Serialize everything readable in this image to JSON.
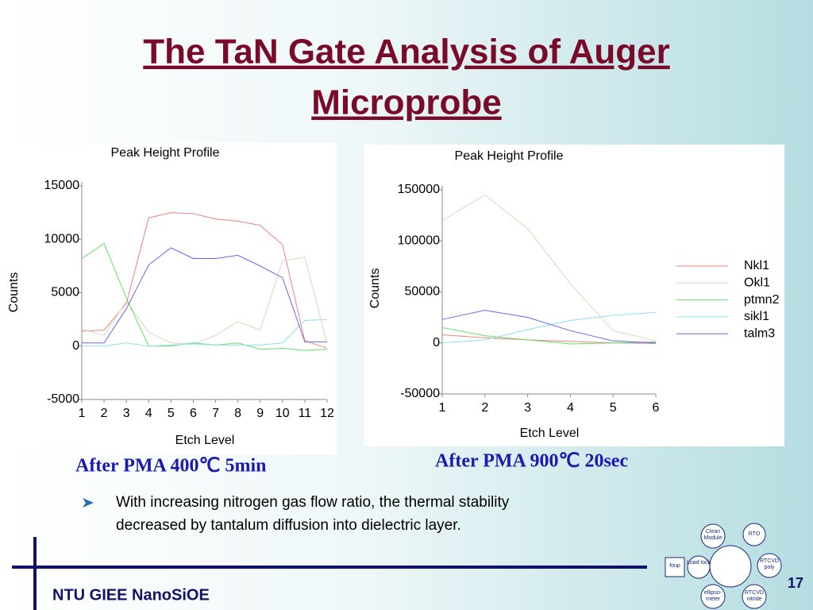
{
  "title": "The TaN Gate Analysis of Auger Microprobe",
  "captions": [
    "After PMA 400℃ 5min",
    "After PMA 900℃ 20sec"
  ],
  "bullet": [
    "With increasing nitrogen gas flow ratio, the thermal stability",
    "decreased by tantalum diffusion into dielectric layer."
  ],
  "footer": "NTU GIEE NanoSiOE",
  "page_number": "17",
  "logo": [
    "Clean Module",
    "RTO",
    "foup",
    "Load lock",
    "RTCVD poly",
    "ellipso-meter",
    "RTCVD nitride"
  ],
  "chart_data": [
    {
      "type": "line",
      "title": "Peak Height Profile",
      "x_label": "Etch Level",
      "y_label": "Counts",
      "x": [
        1,
        2,
        3,
        4,
        5,
        6,
        7,
        8,
        9,
        10,
        11,
        12
      ],
      "xlim": [
        1,
        12
      ],
      "xticks": [
        1,
        2,
        3,
        4,
        5,
        6,
        7,
        8,
        9,
        10,
        11,
        12
      ],
      "ylim": [
        -5000,
        15000
      ],
      "yticks": [
        -5000,
        0,
        5000,
        10000,
        15000
      ],
      "series": [
        {
          "color": "#f08080",
          "values": [
            1400,
            1500,
            4000,
            12000,
            12500,
            12400,
            11900,
            11700,
            11300,
            9500,
            500,
            -200
          ]
        },
        {
          "color": "#e0d4c0",
          "values": [
            1600,
            1000,
            4200,
            1300,
            300,
            200,
            1000,
            2300,
            1500,
            8000,
            8300,
            300
          ]
        },
        {
          "color": "#66e066",
          "values": [
            8200,
            9600,
            4500,
            0,
            0,
            300,
            100,
            300,
            -300,
            -200,
            -400,
            -300
          ]
        },
        {
          "color": "#8ee0ee",
          "values": [
            0,
            0,
            300,
            0,
            100,
            200,
            100,
            100,
            100,
            300,
            2400,
            2500
          ]
        },
        {
          "color": "#6666ee",
          "values": [
            300,
            300,
            3500,
            7600,
            9200,
            8200,
            8200,
            8500,
            7500,
            6400,
            400,
            400
          ]
        }
      ]
    },
    {
      "type": "line",
      "title": "Peak Height Profile",
      "x_label": "Etch Level",
      "y_label": "Counts",
      "x": [
        1,
        2,
        3,
        4,
        5,
        6
      ],
      "xlim": [
        1,
        6
      ],
      "xticks": [
        1,
        2,
        3,
        4,
        5,
        6
      ],
      "ylim": [
        -50000,
        150000
      ],
      "yticks": [
        -50000,
        0,
        50000,
        100000,
        150000
      ],
      "legend": "right",
      "series": [
        {
          "name": "Nkl1",
          "color": "#f08080",
          "values": [
            8000,
            5000,
            3000,
            1500,
            0,
            -500
          ]
        },
        {
          "name": "Okl1",
          "color": "#e0d4c0",
          "values": [
            120000,
            145000,
            112000,
            58000,
            12000,
            2000
          ]
        },
        {
          "name": "ptmn2",
          "color": "#66e066",
          "values": [
            15000,
            7000,
            3000,
            -1000,
            0,
            1000
          ]
        },
        {
          "name": "sikl1",
          "color": "#8ee0ee",
          "values": [
            0,
            3000,
            13000,
            22000,
            27000,
            30000
          ]
        },
        {
          "name": "talm3",
          "color": "#6666ee",
          "values": [
            23000,
            32000,
            25000,
            12000,
            2000,
            0
          ]
        }
      ]
    }
  ]
}
